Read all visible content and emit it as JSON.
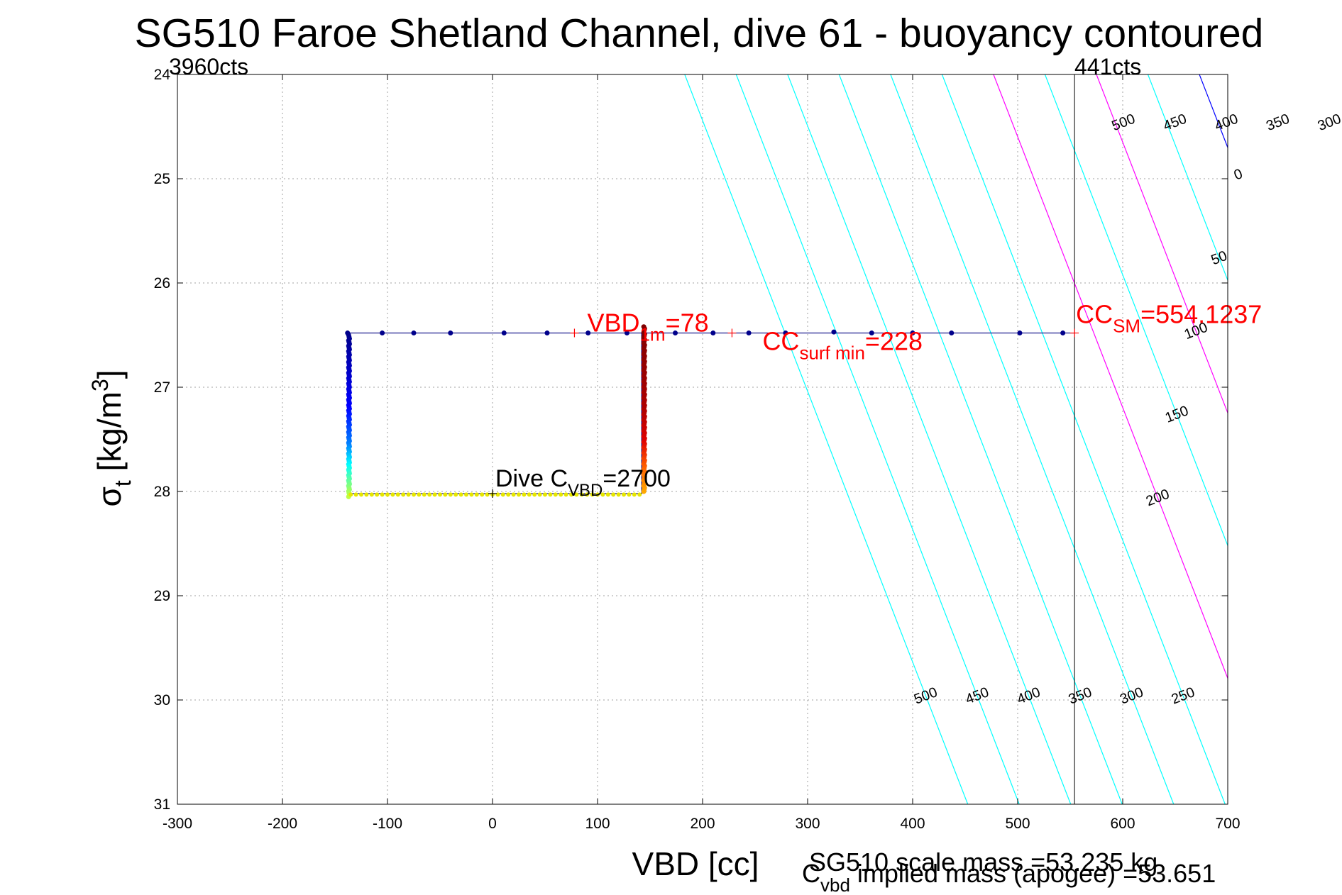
{
  "chart_data": {
    "type": "scatter",
    "title": "SG510 Faroe Shetland Channel, dive 61 - buoyancy contoured",
    "xlabel": "VBD [cc]",
    "ylabel": {
      "sym": "σ",
      "sub": "t",
      "pre": " [kg/m",
      "sup": "3",
      "post": "]"
    },
    "xlim": [
      -300,
      700
    ],
    "ylim": [
      31,
      24
    ],
    "y_reversed": true,
    "grid": true,
    "x_ticks": [
      -300,
      -200,
      -100,
      0,
      100,
      200,
      300,
      400,
      500,
      600,
      700
    ],
    "y_ticks": [
      24,
      25,
      26,
      27,
      28,
      29,
      30,
      31
    ],
    "count_labels": {
      "left": "3960cts",
      "right": "441cts"
    },
    "cc_sm_line_x": 554.1237,
    "buoyancy_contours": {
      "slope_vbd_per_sigma": 38.5,
      "label_offset": 400,
      "lines": [
        {
          "level": 0,
          "intercept_vbd": -251,
          "color": "#0000ff",
          "label": "0",
          "label_at_sigma": 25.0
        },
        {
          "level": 50,
          "intercept_vbd": -300,
          "color": "#00ffff",
          "label": "50",
          "label_at_sigma": 25.8
        },
        {
          "level": 100,
          "intercept_vbd": -349,
          "color": "#ff00ff",
          "label": "100",
          "label_at_sigma": 26.5
        },
        {
          "level": 150,
          "intercept_vbd": -398,
          "color": "#00ffff",
          "label": "150",
          "label_at_sigma": 27.3
        },
        {
          "level": 200,
          "intercept_vbd": -447,
          "color": "#ff00ff",
          "label": "200",
          "label_at_sigma": 28.1
        },
        {
          "level": 250,
          "intercept_vbd": -496,
          "color": "#00ffff",
          "label": "250",
          "label_at_sigma": 24.5,
          "label2_at_sigma": 30.0
        },
        {
          "level": 300,
          "intercept_vbd": -545,
          "color": "#00ffff",
          "label": "300",
          "label_at_sigma": 24.5,
          "label2_at_sigma": 30.0
        },
        {
          "level": 350,
          "intercept_vbd": -594,
          "color": "#00ffff",
          "label": "350",
          "label_at_sigma": 24.5,
          "label2_at_sigma": 30.0
        },
        {
          "level": 400,
          "intercept_vbd": -643,
          "color": "#00ffff",
          "label": "400",
          "label_at_sigma": 24.5,
          "label2_at_sigma": 30.0
        },
        {
          "level": 450,
          "intercept_vbd": -692,
          "color": "#00ffff",
          "label": "450",
          "label_at_sigma": 24.5,
          "label2_at_sigma": 30.0
        },
        {
          "level": 500,
          "intercept_vbd": -741,
          "color": "#00ffff",
          "label": "500",
          "label_at_sigma": 24.5,
          "label2_at_sigma": 30.0
        }
      ]
    },
    "dive_path": {
      "color": "#000080",
      "points": [
        [
          -138,
          26.48
        ],
        [
          -138,
          28.02
        ],
        [
          142,
          28.02
        ],
        [
          142,
          26.48
        ],
        [
          554.1237,
          26.48
        ],
        [
          -138,
          26.48
        ]
      ]
    },
    "series": [
      {
        "segment": "surface",
        "color": "#00008b",
        "points": [
          [
            -138,
            26.48
          ],
          [
            -105,
            26.48
          ],
          [
            -75,
            26.48
          ],
          [
            -40,
            26.48
          ],
          [
            11,
            26.48
          ],
          [
            52,
            26.48
          ],
          [
            91,
            26.48
          ],
          [
            128,
            26.48
          ],
          [
            174,
            26.48
          ],
          [
            210,
            26.48
          ],
          [
            244,
            26.48
          ],
          [
            279,
            26.48
          ],
          [
            325,
            26.47
          ],
          [
            361,
            26.48
          ],
          [
            400,
            26.48
          ],
          [
            437,
            26.48
          ],
          [
            502,
            26.48
          ],
          [
            543,
            26.48
          ]
        ]
      },
      {
        "segment": "descent",
        "x": -137,
        "from_sigma": 26.5,
        "to_sigma": 28.05,
        "color_stops": [
          {
            "at_sigma": 26.5,
            "color": "#00008b"
          },
          {
            "at_sigma": 27.2,
            "color": "#0000ff"
          },
          {
            "at_sigma": 27.55,
            "color": "#0080ff"
          },
          {
            "at_sigma": 27.75,
            "color": "#00ffff"
          },
          {
            "at_sigma": 27.95,
            "color": "#80ff80"
          },
          {
            "at_sigma": 28.05,
            "color": "#c0ff40"
          }
        ]
      },
      {
        "segment": "bottom",
        "sigma": 28.03,
        "from_vbd": -135,
        "to_vbd": 140,
        "color": "#e6e600"
      },
      {
        "segment": "ascent",
        "x": 144,
        "from_sigma": 28.0,
        "to_sigma": 26.42,
        "color_stops": [
          {
            "at_sigma": 28.0,
            "color": "#ffaa00"
          },
          {
            "at_sigma": 27.75,
            "color": "#ff6000"
          },
          {
            "at_sigma": 27.5,
            "color": "#e00000"
          },
          {
            "at_sigma": 27.2,
            "color": "#b00000"
          },
          {
            "at_sigma": 26.42,
            "color": "#800000"
          }
        ]
      }
    ],
    "annotations": [
      {
        "kind": "vbd1m",
        "marker_at": [
          78,
          26.48
        ],
        "text": "VBD",
        "sub": "1m",
        "tail": "=78",
        "color": "#ff0000"
      },
      {
        "kind": "cc_surf_min",
        "marker_at": [
          228,
          26.48
        ],
        "text": "CC",
        "sub": "surf min",
        "tail": "=228",
        "color": "#ff0000"
      },
      {
        "kind": "cc_sm",
        "marker_at": [
          554.1237,
          26.48
        ],
        "text": "CC",
        "sub": "SM",
        "tail": "=554.1237",
        "color": "#ff0000"
      },
      {
        "kind": "dive_cvbd",
        "marker_at": [
          0,
          28.02
        ],
        "text": "Dive C",
        "sub": "VBD",
        "tail": "=2700",
        "color": "#000000"
      }
    ],
    "footer": {
      "scale_mass": "SG510 scale mass =53.235 kg",
      "implied_mass_pre": "C",
      "implied_mass_sub": "vbd",
      "implied_mass_tail": " implied mass (apogee) =53.651"
    }
  }
}
